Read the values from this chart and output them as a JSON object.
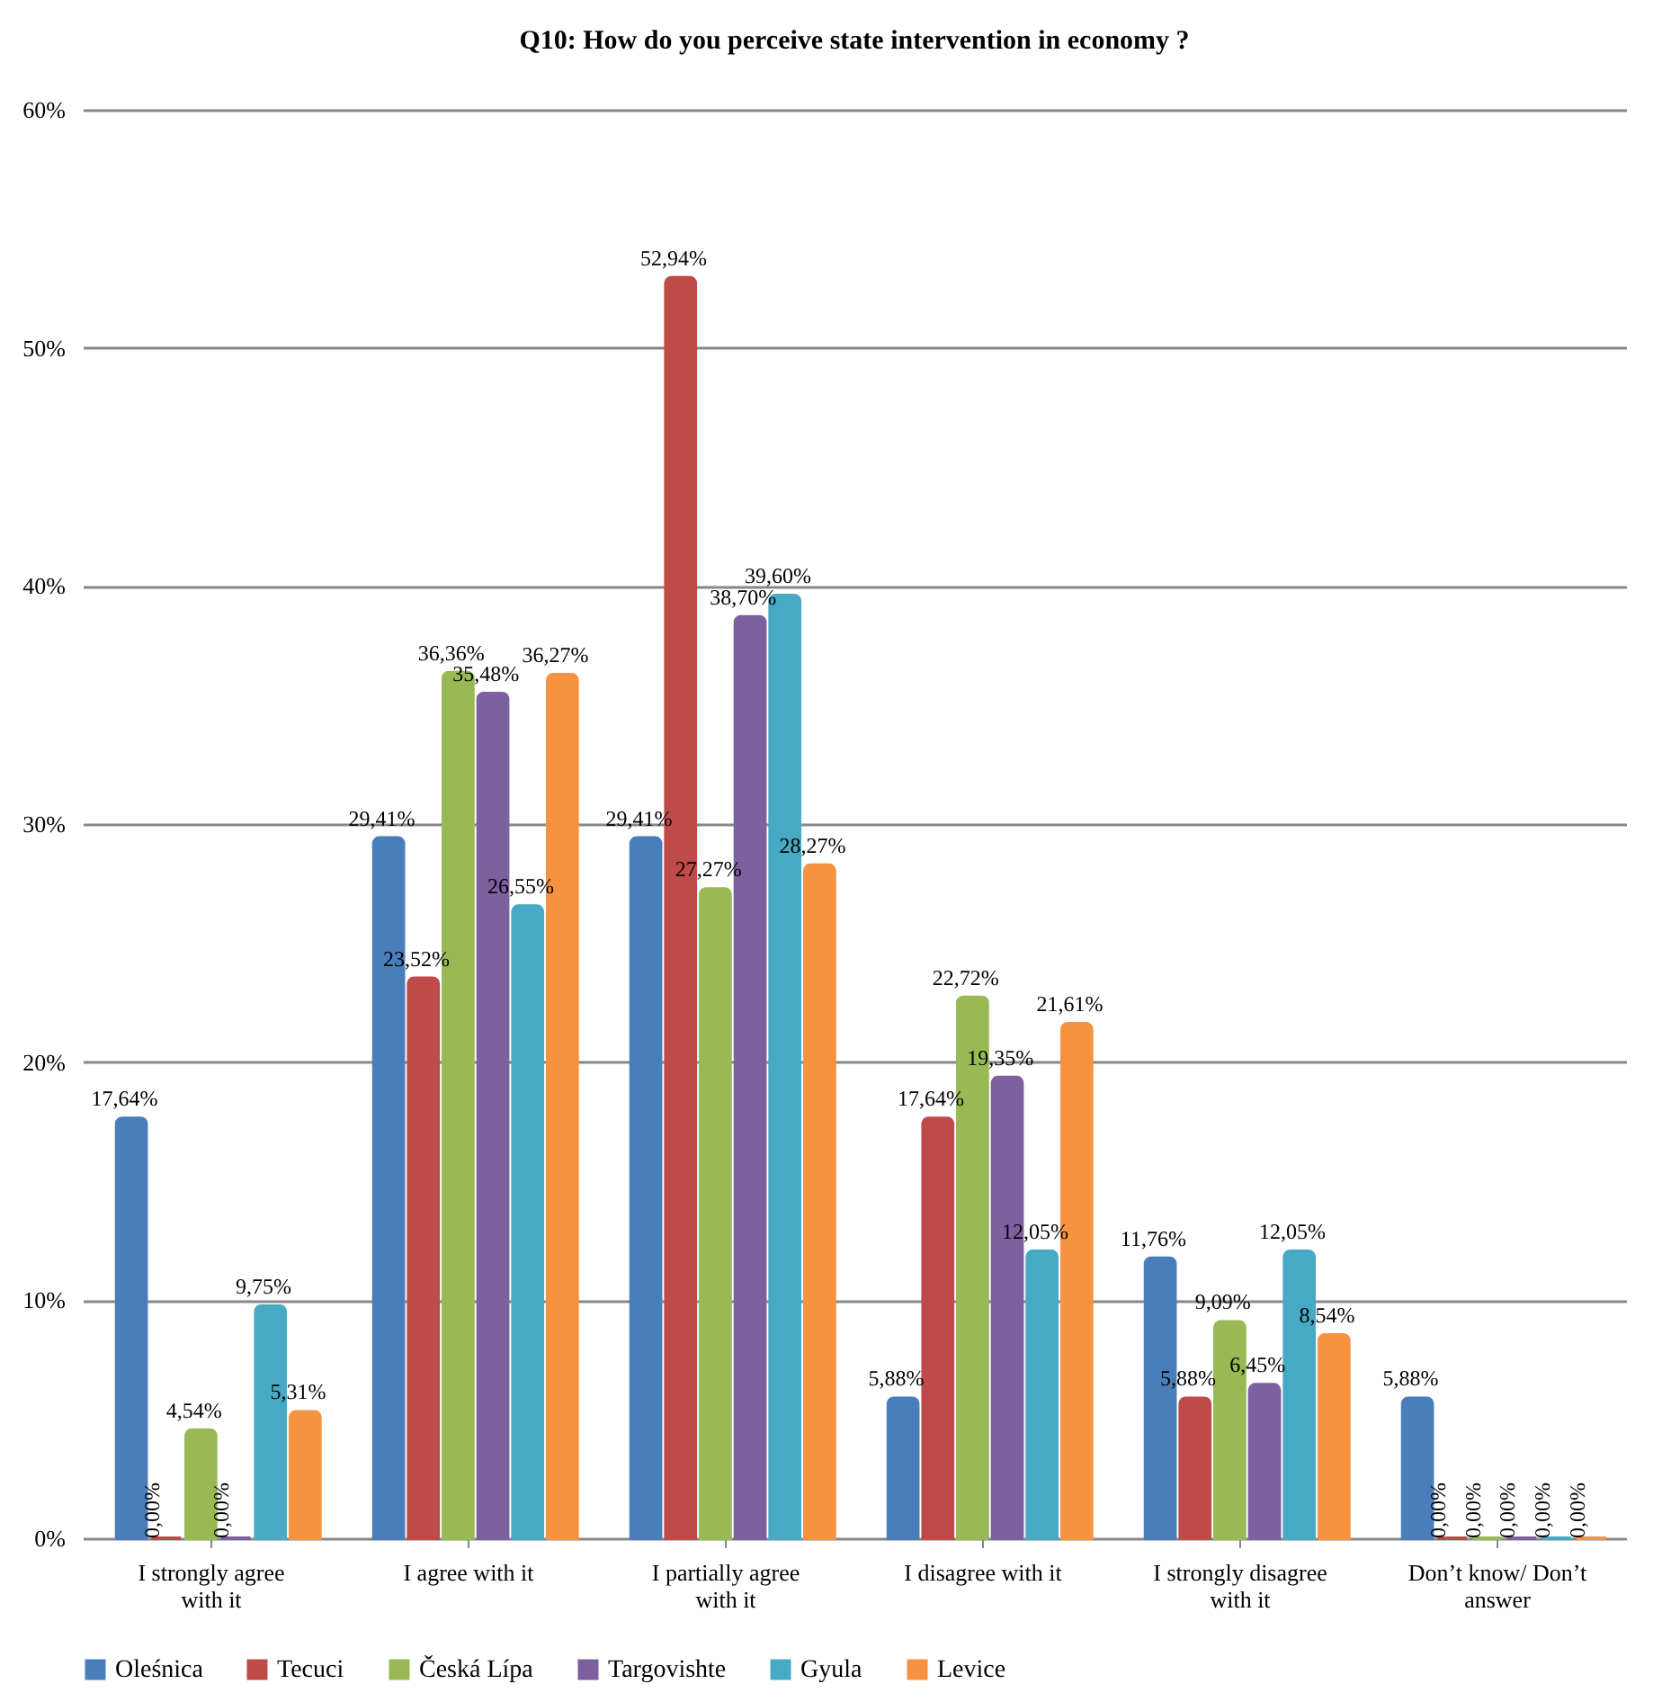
{
  "chart_data": {
    "type": "bar",
    "title": "Q10: How do you perceive state intervention in economy ?",
    "categories": [
      "I strongly agree with it",
      "I agree with it",
      "I partially agree with it",
      "I disagree with it",
      "I strongly disagree with it",
      "Don’t know/ Don’t answer"
    ],
    "series": [
      {
        "name": "Oleśnica",
        "color": "#4a7ebb",
        "values": [
          17.64,
          29.41,
          29.41,
          5.88,
          11.76,
          5.88
        ],
        "value_labels": [
          "17,64%",
          "29,41%",
          "29,41%",
          "5,88%",
          "11,76%",
          "5,88%"
        ]
      },
      {
        "name": "Tecuci",
        "color": "#be4b48",
        "values": [
          0,
          23.52,
          52.94,
          17.64,
          5.88,
          0
        ],
        "value_labels": [
          "0,00%",
          "23,52%",
          "52,94%",
          "17,64%",
          "5,88%",
          "0,00%"
        ]
      },
      {
        "name": "Česká Lípa",
        "color": "#98b954",
        "values": [
          4.54,
          36.36,
          27.27,
          22.72,
          9.09,
          0
        ],
        "value_labels": [
          "4,54%",
          "36,36%",
          "27,27%",
          "22,72%",
          "9,09%",
          "0,00%"
        ]
      },
      {
        "name": "Targovishte",
        "color": "#7d60a0",
        "values": [
          0,
          35.48,
          38.7,
          19.35,
          6.45,
          0
        ],
        "value_labels": [
          "0,00%",
          "35,48%",
          "38,70%",
          "19,35%",
          "6,45%",
          "0,00%"
        ]
      },
      {
        "name": "Gyula",
        "color": "#46aac5",
        "values": [
          9.75,
          26.55,
          39.6,
          12.05,
          12.05,
          0
        ],
        "value_labels": [
          "9,75%",
          "26,55%",
          "39,60%",
          "12,05%",
          "12,05%",
          "0,00%"
        ]
      },
      {
        "name": "Levice",
        "color": "#f69240",
        "values": [
          5.31,
          36.27,
          28.27,
          21.61,
          8.54,
          0
        ],
        "value_labels": [
          "5,31%",
          "36,27%",
          "28,27%",
          "21,61%",
          "8,54%",
          "0,00%"
        ]
      }
    ],
    "ylim": [
      0,
      60
    ],
    "yticks": [
      {
        "value": 0,
        "label": "0%"
      },
      {
        "value": 10,
        "label": "10%"
      },
      {
        "value": 20,
        "label": "20%"
      },
      {
        "value": 30,
        "label": "30%"
      },
      {
        "value": 40,
        "label": "40%"
      },
      {
        "value": 50,
        "label": "50%"
      },
      {
        "value": 60,
        "label": "60%"
      }
    ],
    "grid": "y",
    "legend": "bottom"
  }
}
